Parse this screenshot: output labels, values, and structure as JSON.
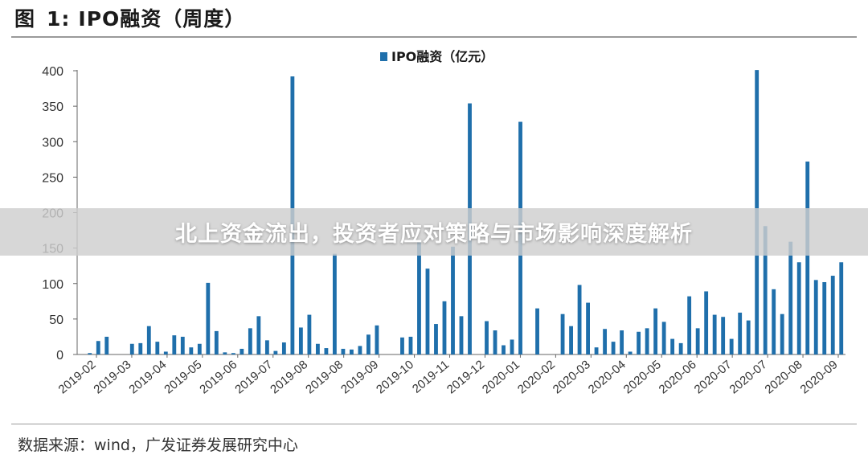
{
  "figure": {
    "title_prefix": "图",
    "title_number": "1:",
    "title_text": "IPO融资（周度）",
    "source": "数据来源：wind，广发证券发展研究中心"
  },
  "overlay": {
    "headline": "北上资金流出，投资者应对策略与市场影响深度解析"
  },
  "colors": {
    "bar": "#1f6fab",
    "axis": "#666666",
    "text": "#333333"
  },
  "chart_data": {
    "type": "bar",
    "title": "",
    "xlabel": "",
    "ylabel": "",
    "ylim": [
      0,
      400
    ],
    "yticks": [
      0,
      50,
      100,
      150,
      200,
      250,
      300,
      350,
      400
    ],
    "grid": false,
    "legend_position": "top-center",
    "x_tick_labels": [
      "2019-02",
      "2019-03",
      "2019-04",
      "2019-05",
      "2019-06",
      "2019-07",
      "2019-08",
      "2019-08",
      "2019-09",
      "2019-10",
      "2019-11",
      "2019-12",
      "2020-01",
      "2020-02",
      "2020-03",
      "2020-04",
      "2020-05",
      "2020-06",
      "2020-07",
      "2020-07",
      "2020-08",
      "2020-09"
    ],
    "series": [
      {
        "name": "IPO融资（亿元）",
        "values": [
          0,
          2,
          19,
          25,
          0,
          0,
          15,
          16,
          40,
          18,
          4,
          27,
          25,
          10,
          15,
          101,
          33,
          3,
          2,
          8,
          37,
          54,
          20,
          5,
          17,
          392,
          38,
          56,
          15,
          9,
          142,
          8,
          7,
          12,
          28,
          41,
          0,
          0,
          24,
          25,
          160,
          121,
          43,
          75,
          152,
          54,
          354,
          0,
          47,
          34,
          13,
          21,
          328,
          0,
          65,
          0,
          0,
          57,
          40,
          98,
          73,
          10,
          36,
          18,
          34,
          4,
          32,
          37,
          65,
          46,
          22,
          16,
          82,
          37,
          89,
          56,
          53,
          22,
          59,
          48,
          401,
          181,
          92,
          57,
          159,
          130,
          272,
          105,
          102,
          111,
          130
        ]
      }
    ]
  }
}
